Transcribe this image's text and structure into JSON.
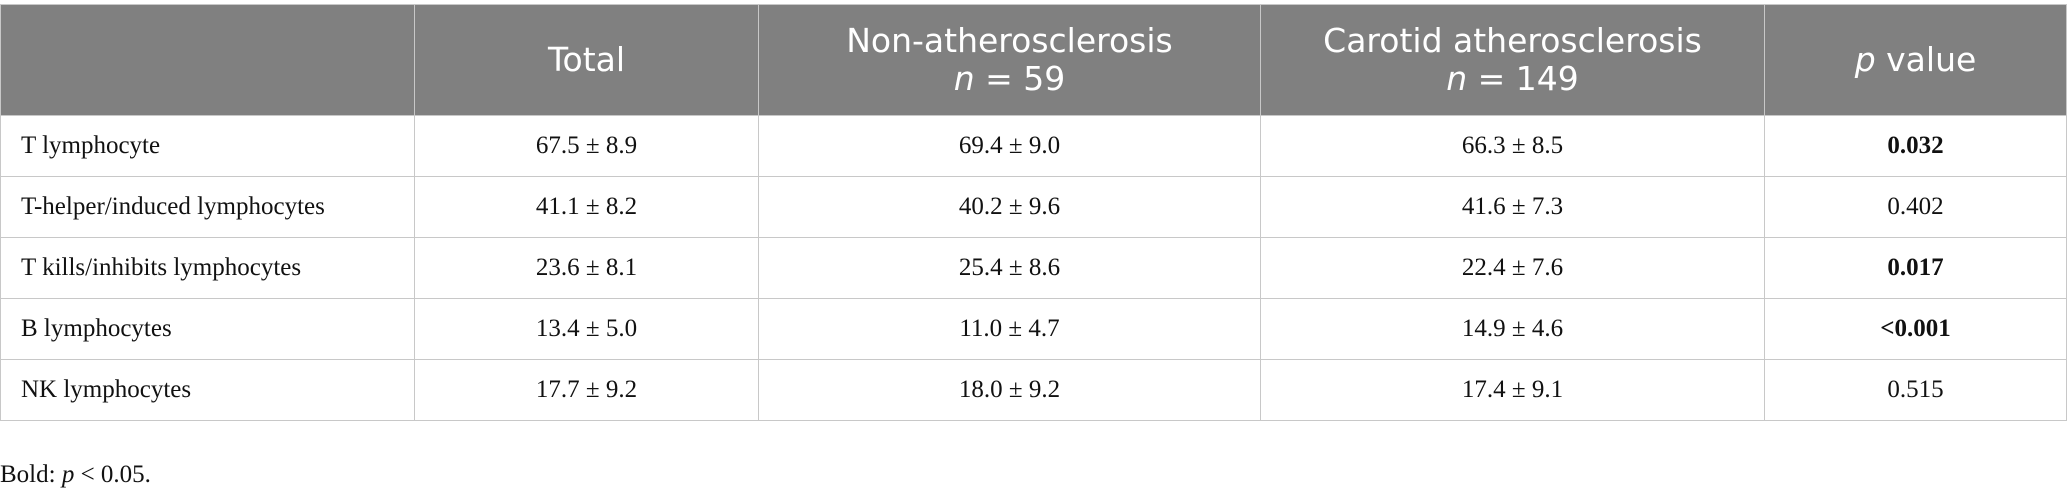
{
  "table": {
    "header": [
      {
        "parts": [
          {
            "text": "",
            "italic": false
          }
        ]
      },
      {
        "parts": [
          {
            "text": "Total",
            "italic": false
          }
        ]
      },
      {
        "parts": [
          {
            "text": "Non-atherosclerosis",
            "italic": false,
            "break_after": true
          },
          {
            "text": "n",
            "italic": true
          },
          {
            "text": " = 59",
            "italic": false
          }
        ]
      },
      {
        "parts": [
          {
            "text": "Carotid atherosclerosis",
            "italic": false,
            "break_after": true
          },
          {
            "text": "n",
            "italic": true
          },
          {
            "text": " = 149",
            "italic": false
          }
        ]
      },
      {
        "parts": [
          {
            "text": "p",
            "italic": true
          },
          {
            "text": " value",
            "italic": false
          }
        ]
      }
    ],
    "rows": [
      {
        "cells": [
          "T lymphocyte",
          "67.5 ± 8.9",
          "69.4 ± 9.0",
          "66.3 ± 8.5",
          "0.032"
        ],
        "p_bold": true
      },
      {
        "cells": [
          "T-helper/induced lymphocytes",
          "41.1 ± 8.2",
          "40.2 ± 9.6",
          "41.6 ± 7.3",
          "0.402"
        ],
        "p_bold": false
      },
      {
        "cells": [
          "T kills/inhibits lymphocytes",
          "23.6 ± 8.1",
          "25.4 ± 8.6",
          "22.4 ± 7.6",
          "0.017"
        ],
        "p_bold": true
      },
      {
        "cells": [
          "B lymphocytes",
          "13.4 ± 5.0",
          "11.0 ± 4.7",
          "14.9 ± 4.6",
          "<0.001"
        ],
        "p_bold": true
      },
      {
        "cells": [
          "NK lymphocytes",
          "17.7 ± 9.2",
          "18.0 ± 9.2",
          "17.4 ± 9.1",
          "0.515"
        ],
        "p_bold": false
      }
    ]
  },
  "footnote": {
    "parts": [
      {
        "text": "Bold: ",
        "italic": false
      },
      {
        "text": "p",
        "italic": true
      },
      {
        "text": " < 0.05.",
        "italic": false
      }
    ]
  }
}
